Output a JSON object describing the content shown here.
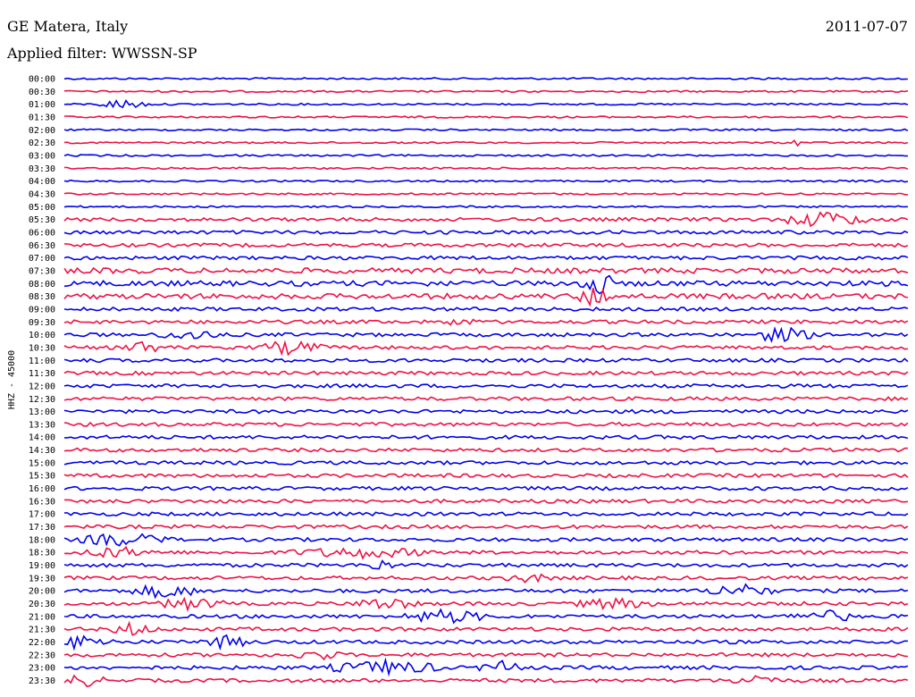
{
  "header": {
    "station": "GE Matera, Italy",
    "date": "2011-07-07",
    "filter": "Applied filter: WWSSN-SP"
  },
  "chart_data": {
    "type": "line",
    "title": "GE Matera, Italy",
    "ylabel": "HHZ - 45000",
    "rows": [
      "00:00",
      "00:30",
      "01:00",
      "01:30",
      "02:00",
      "02:30",
      "03:00",
      "03:30",
      "04:00",
      "04:30",
      "05:00",
      "05:30",
      "06:00",
      "06:30",
      "07:00",
      "07:30",
      "08:00",
      "08:30",
      "09:00",
      "09:30",
      "10:00",
      "10:30",
      "11:00",
      "11:30",
      "12:00",
      "12:30",
      "13:00",
      "13:30",
      "14:00",
      "14:30",
      "15:00",
      "15:30",
      "16:00",
      "16:30",
      "17:00",
      "17:30",
      "18:00",
      "18:30",
      "19:00",
      "19:30",
      "20:00",
      "20:30",
      "21:00",
      "21:30",
      "22:00",
      "22:30",
      "23:00",
      "23:30"
    ],
    "colors": [
      "#0000ee",
      "#ee1144"
    ],
    "noise_level": [
      1,
      1,
      1,
      1,
      1,
      1,
      1,
      1,
      1,
      1,
      1,
      2,
      2,
      2,
      2,
      3,
      3,
      3,
      2,
      2,
      2,
      2,
      2,
      2,
      2,
      2,
      2,
      2,
      2,
      2,
      2,
      2,
      2,
      2,
      2,
      2,
      2,
      2,
      2,
      2,
      2,
      2,
      2,
      2,
      2,
      2,
      2,
      2
    ],
    "events": [
      {
        "row": 2,
        "pos": 0.07,
        "amp": 6,
        "dur": 0.03
      },
      {
        "row": 5,
        "pos": 0.87,
        "amp": 8,
        "dur": 0.005
      },
      {
        "row": 7,
        "pos": 0.21,
        "amp": 7,
        "dur": 0.005
      },
      {
        "row": 11,
        "pos": 0.9,
        "amp": 10,
        "dur": 0.05
      },
      {
        "row": 16,
        "pos": 0.63,
        "amp": 18,
        "dur": 0.02
      },
      {
        "row": 17,
        "pos": 0.63,
        "amp": 14,
        "dur": 0.02
      },
      {
        "row": 19,
        "pos": 0.47,
        "amp": 6,
        "dur": 0.02
      },
      {
        "row": 20,
        "pos": 0.15,
        "amp": 7,
        "dur": 0.04
      },
      {
        "row": 20,
        "pos": 0.85,
        "amp": 9,
        "dur": 0.04
      },
      {
        "row": 21,
        "pos": 0.09,
        "amp": 10,
        "dur": 0.02
      },
      {
        "row": 21,
        "pos": 0.27,
        "amp": 9,
        "dur": 0.04
      },
      {
        "row": 36,
        "pos": 0.07,
        "amp": 8,
        "dur": 0.06
      },
      {
        "row": 37,
        "pos": 0.06,
        "amp": 7,
        "dur": 0.05
      },
      {
        "row": 37,
        "pos": 0.35,
        "amp": 7,
        "dur": 0.09
      },
      {
        "row": 38,
        "pos": 0.37,
        "amp": 8,
        "dur": 0.02
      },
      {
        "row": 39,
        "pos": 0.55,
        "amp": 6,
        "dur": 0.03
      },
      {
        "row": 40,
        "pos": 0.12,
        "amp": 9,
        "dur": 0.04
      },
      {
        "row": 40,
        "pos": 0.8,
        "amp": 9,
        "dur": 0.04
      },
      {
        "row": 41,
        "pos": 0.15,
        "amp": 8,
        "dur": 0.04
      },
      {
        "row": 41,
        "pos": 0.38,
        "amp": 8,
        "dur": 0.04
      },
      {
        "row": 41,
        "pos": 0.65,
        "amp": 7,
        "dur": 0.05
      },
      {
        "row": 42,
        "pos": 0.45,
        "amp": 9,
        "dur": 0.05
      },
      {
        "row": 42,
        "pos": 0.9,
        "amp": 8,
        "dur": 0.04
      },
      {
        "row": 43,
        "pos": 0.08,
        "amp": 8,
        "dur": 0.03
      },
      {
        "row": 44,
        "pos": 0.02,
        "amp": 9,
        "dur": 0.04
      },
      {
        "row": 44,
        "pos": 0.19,
        "amp": 8,
        "dur": 0.03
      },
      {
        "row": 45,
        "pos": 0.3,
        "amp": 7,
        "dur": 0.03
      },
      {
        "row": 46,
        "pos": 0.38,
        "amp": 9,
        "dur": 0.07
      },
      {
        "row": 46,
        "pos": 0.52,
        "amp": 8,
        "dur": 0.03
      },
      {
        "row": 47,
        "pos": 0.02,
        "amp": 8,
        "dur": 0.03
      },
      {
        "row": 47,
        "pos": 0.82,
        "amp": 8,
        "dur": 0.03
      }
    ]
  }
}
